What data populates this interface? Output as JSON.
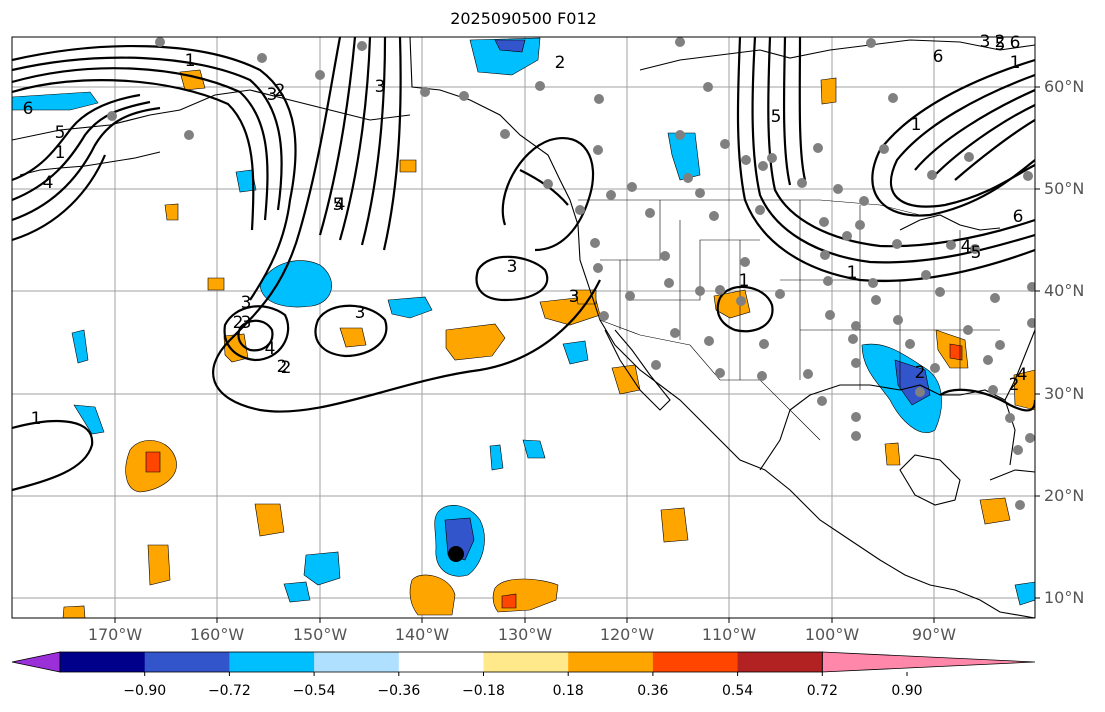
{
  "title": "2025090500 F012",
  "lon_labels": [
    "170°W",
    "160°W",
    "150°W",
    "140°W",
    "130°W",
    "120°W",
    "110°W",
    "100°W",
    "90°W"
  ],
  "lat_labels": [
    "60°N",
    "50°N",
    "40°N",
    "30°N",
    "20°N",
    "10°N"
  ],
  "colorbar": {
    "ticks": [
      "−0.90",
      "−0.72",
      "−0.54",
      "−0.36",
      "−0.18",
      "0.18",
      "0.36",
      "0.54",
      "0.72",
      "0.90"
    ],
    "colors": [
      "#9b30d9",
      "#00008b",
      "#3355cc",
      "#00bfff",
      "#b0e0ff",
      "#ffffff",
      "#ffe98a",
      "#ffa500",
      "#ff4500",
      "#b22222",
      "#ff88aa"
    ]
  },
  "contour_labels": [
    "6",
    "5",
    "4",
    "3",
    "2",
    "1",
    "3",
    "5",
    "2",
    "3",
    "4",
    "3",
    "2",
    "1",
    "3",
    "2",
    "3",
    "2",
    "1",
    "6",
    "5",
    "4",
    "3",
    "2",
    "1",
    "1",
    "6",
    "5",
    "4",
    "3",
    "2",
    "1",
    "6",
    "5",
    "4",
    "2",
    "1"
  ],
  "colors": {
    "gridline": "#a0a0a0",
    "coast": "#000000",
    "contour": "#000000",
    "station": "#808080"
  }
}
